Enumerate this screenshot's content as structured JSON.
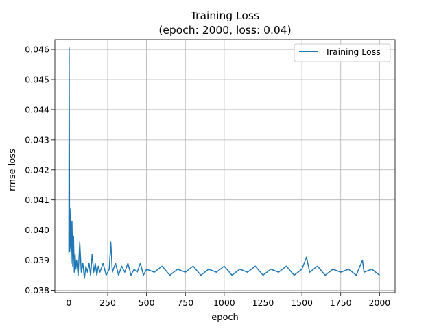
{
  "chart_data": {
    "type": "line",
    "title": "Training Loss",
    "subtitle": "(epoch: 2000, loss: 0.04)",
    "xlabel": "epoch",
    "ylabel": "rmse loss",
    "xlim": [
      -90,
      2100
    ],
    "ylim": [
      0.03792,
      0.04632
    ],
    "xticks": [
      0,
      250,
      500,
      750,
      1000,
      1250,
      1500,
      1750,
      2000
    ],
    "xtick_labels": [
      "0",
      "250",
      "500",
      "750",
      "1000",
      "1250",
      "1500",
      "1750",
      "2000"
    ],
    "yticks": [
      0.038,
      0.039,
      0.04,
      0.041,
      0.042,
      0.043,
      0.044,
      0.045,
      0.046
    ],
    "ytick_labels": [
      "0.038",
      "0.039",
      "0.040",
      "0.041",
      "0.042",
      "0.043",
      "0.044",
      "0.045",
      "0.046"
    ],
    "grid": true,
    "legend_position": "top-right",
    "series": [
      {
        "name": "Training Loss",
        "color": "#1f77b4",
        "x": [
          0,
          2,
          5,
          8,
          12,
          15,
          20,
          25,
          30,
          35,
          40,
          45,
          50,
          60,
          70,
          80,
          90,
          100,
          110,
          120,
          130,
          140,
          150,
          160,
          170,
          180,
          190,
          200,
          220,
          240,
          260,
          270,
          280,
          300,
          320,
          340,
          360,
          380,
          400,
          420,
          440,
          460,
          480,
          500,
          550,
          600,
          650,
          700,
          750,
          800,
          850,
          900,
          950,
          1000,
          1050,
          1100,
          1150,
          1200,
          1250,
          1300,
          1350,
          1400,
          1450,
          1500,
          1530,
          1550,
          1600,
          1650,
          1700,
          1750,
          1800,
          1850,
          1890,
          1900,
          1950,
          2000
        ],
        "y": [
          0.03925,
          0.04605,
          0.0393,
          0.0395,
          0.0407,
          0.0389,
          0.0403,
          0.0388,
          0.0398,
          0.0386,
          0.0392,
          0.0387,
          0.039,
          0.0385,
          0.0396,
          0.0386,
          0.0389,
          0.0384,
          0.0388,
          0.0386,
          0.0389,
          0.0385,
          0.0392,
          0.0386,
          0.0389,
          0.0385,
          0.0388,
          0.0386,
          0.0389,
          0.0385,
          0.0387,
          0.0396,
          0.0386,
          0.0389,
          0.0385,
          0.0388,
          0.0386,
          0.0389,
          0.0385,
          0.0387,
          0.0386,
          0.0389,
          0.0385,
          0.0387,
          0.0386,
          0.0388,
          0.0385,
          0.0387,
          0.0386,
          0.0388,
          0.0385,
          0.0387,
          0.0386,
          0.0388,
          0.0385,
          0.0387,
          0.0386,
          0.0388,
          0.0385,
          0.0387,
          0.0386,
          0.0388,
          0.0385,
          0.0387,
          0.0391,
          0.0386,
          0.0388,
          0.0385,
          0.0387,
          0.0386,
          0.0387,
          0.0385,
          0.039,
          0.0386,
          0.0387,
          0.0385
        ]
      }
    ]
  }
}
